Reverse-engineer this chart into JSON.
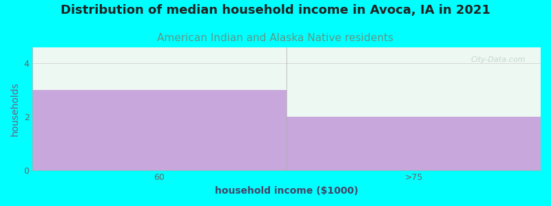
{
  "categories": [
    "60",
    ">75"
  ],
  "values": [
    3,
    2
  ],
  "bar_color": "#C8A8DC",
  "plot_bg_color": "#EEF8F2",
  "fig_bg_color": "#00FFFF",
  "title": "Distribution of median household income in Avoca, IA in 2021",
  "subtitle": "American Indian and Alaska Native residents",
  "xlabel": "household income ($1000)",
  "ylabel": "households",
  "title_fontsize": 13,
  "subtitle_fontsize": 11,
  "label_fontsize": 10,
  "title_color": "#222222",
  "subtitle_color": "#5B9B8A",
  "ylabel_color": "#666688",
  "xlabel_color": "#444466",
  "ylim": [
    0,
    4.6
  ],
  "yticks": [
    0,
    2,
    4
  ],
  "watermark": "City-Data.com"
}
